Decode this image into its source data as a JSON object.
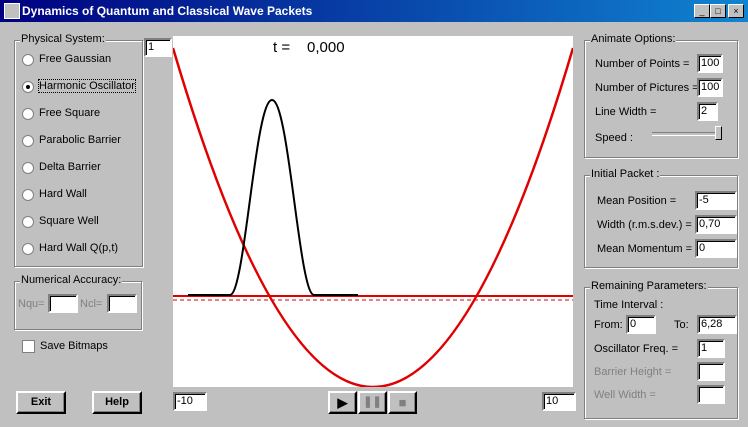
{
  "window": {
    "title": "Dynamics of Quantum and Classical Wave Packets"
  },
  "physical_system": {
    "label": "Physical System:",
    "number": "1",
    "options": [
      {
        "label": "Free Gaussian",
        "selected": false
      },
      {
        "label": "Harmonic Oscillator",
        "selected": true
      },
      {
        "label": "Free Square",
        "selected": false
      },
      {
        "label": "Parabolic Barrier",
        "selected": false
      },
      {
        "label": "Delta Barrier",
        "selected": false
      },
      {
        "label": "Hard Wall",
        "selected": false
      },
      {
        "label": "Square Well",
        "selected": false
      },
      {
        "label": "Hard Wall Q(p,t)",
        "selected": false
      }
    ]
  },
  "numerical_accuracy": {
    "label": "Numerical Accuracy:",
    "nqu_label": "Nqu=",
    "ncl_label": "Ncl="
  },
  "save_bitmaps": {
    "label": "Save Bitmaps",
    "checked": false
  },
  "buttons": {
    "exit": "Exit",
    "help": "Help"
  },
  "plot": {
    "time_label": "t =",
    "time_value": "0,000",
    "x_min": "-10",
    "x_max": "10"
  },
  "animate_options": {
    "label": "Animate Options:",
    "fields": [
      {
        "label": "Number of Points =",
        "value": "100"
      },
      {
        "label": "Number of Pictures =",
        "value": "100"
      },
      {
        "label": "Line Width =",
        "value": "2"
      }
    ],
    "speed_label": "Speed :"
  },
  "initial_packet": {
    "label": "Initial Packet :",
    "fields": [
      {
        "label": "Mean Position =",
        "value": "-5"
      },
      {
        "label": "Width (r.m.s.dev.) =",
        "value": "0,70"
      },
      {
        "label": "Mean Momentum =",
        "value": "0"
      }
    ]
  },
  "remaining_parameters": {
    "label": "Remaining Parameters:",
    "time_interval_label": "Time Interval :",
    "from_label": "From:",
    "from_value": "0",
    "to_label": "To:",
    "to_value": "6,28",
    "fields": [
      {
        "label": "Oscillator Freq. =",
        "value": "1"
      },
      {
        "label": "Barrier Height =",
        "value": ""
      },
      {
        "label": "Well Width =",
        "value": ""
      }
    ]
  }
}
